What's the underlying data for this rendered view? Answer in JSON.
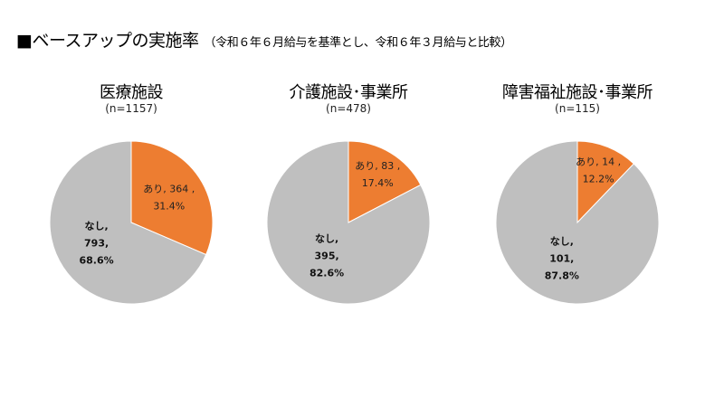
{
  "title": {
    "main": "■ベースアップの実施率",
    "sub": "（令和６年６月給与を基準とし、令和６年３月給与と比較）"
  },
  "colors": {
    "ari": "#ED7D31",
    "nashi": "#BFBFBF"
  },
  "chart_data": [
    {
      "type": "pie",
      "title": "医療施設",
      "n_label": "(n=1157)",
      "slices": [
        {
          "name": "あり",
          "value": 364,
          "percent": "31.4%",
          "color": "#ED7D31"
        },
        {
          "name": "なし",
          "value": 793,
          "percent": "68.6%",
          "color": "#BFBFBF"
        }
      ]
    },
    {
      "type": "pie",
      "title": "介護施設･事業所",
      "n_label": "(n=478)",
      "slices": [
        {
          "name": "あり",
          "value": 83,
          "percent": "17.4%",
          "color": "#ED7D31"
        },
        {
          "name": "なし",
          "value": 395,
          "percent": "82.6%",
          "color": "#BFBFBF"
        }
      ]
    },
    {
      "type": "pie",
      "title": "障害福祉施設･事業所",
      "n_label": "(n=115)",
      "slices": [
        {
          "name": "あり",
          "value": 14,
          "percent": "12.2%",
          "color": "#ED7D31"
        },
        {
          "name": "なし",
          "value": 101,
          "percent": "87.8%",
          "color": "#BFBFBF"
        }
      ]
    }
  ]
}
